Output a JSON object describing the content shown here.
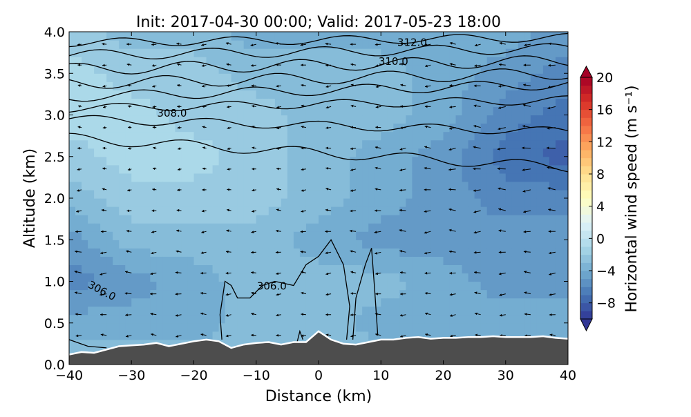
{
  "chart_data": {
    "type": "heatmap",
    "title": "Init: 2017-04-30 00:00; Valid: 2017-05-23 18:00",
    "xlabel": "Distance (km)",
    "ylabel": "Altitude (km)",
    "xlim": [
      -40,
      40
    ],
    "ylim": [
      0,
      4
    ],
    "x_ticks": [
      -40,
      -30,
      -20,
      -10,
      0,
      10,
      20,
      30,
      40
    ],
    "x_tick_labels": [
      "−40",
      "−30",
      "−20",
      "−10",
      "0",
      "10",
      "20",
      "30",
      "40"
    ],
    "y_ticks": [
      0,
      0.5,
      1,
      1.5,
      2,
      2.5,
      3,
      3.5,
      4
    ],
    "y_tick_labels": [
      "0.0",
      "0.5",
      "1.0",
      "1.5",
      "2.0",
      "2.5",
      "3.0",
      "3.5",
      "4.0"
    ],
    "grid": false,
    "colorbar": {
      "label": "Horizontal wind speed (m s⁻¹)",
      "min": -10,
      "max": 20,
      "step": 1,
      "extend": "both",
      "ticks": [
        20,
        16,
        12,
        8,
        4,
        0,
        -4,
        -8
      ],
      "tick_labels": [
        "20",
        "16",
        "12",
        "8",
        "4",
        "0",
        "−4",
        "−8"
      ]
    },
    "wind_field": [
      {
        "x": -40,
        "values": [
          -3,
          -4,
          -6,
          -5,
          -3,
          -2,
          -1,
          -1,
          -2
        ]
      },
      {
        "x": -30,
        "values": [
          -3,
          -4,
          -5,
          -3,
          -2,
          -1,
          -1,
          -2,
          -3
        ]
      },
      {
        "x": -20,
        "values": [
          -3,
          -4,
          -4,
          -3,
          -2,
          -1,
          -2,
          -2,
          -3
        ]
      },
      {
        "x": -10,
        "values": [
          -3,
          -3,
          -3,
          -3,
          -2,
          -2,
          -2,
          -3,
          -4
        ]
      },
      {
        "x": 0,
        "values": [
          -2,
          -3,
          -3,
          -4,
          -3,
          -3,
          -3,
          -3,
          -4
        ]
      },
      {
        "x": 10,
        "values": [
          -3,
          -4,
          -3,
          -5,
          -4,
          -4,
          -3,
          -3,
          -4
        ]
      },
      {
        "x": 20,
        "values": [
          -3,
          -4,
          -4,
          -5,
          -5,
          -5,
          -4,
          -4,
          -4
        ]
      },
      {
        "x": 30,
        "values": [
          -3,
          -4,
          -5,
          -5,
          -6,
          -7,
          -6,
          -5,
          -4
        ]
      },
      {
        "x": 40,
        "values": [
          -3,
          -4,
          -5,
          -5,
          -6,
          -8,
          -7,
          -6,
          -5
        ]
      }
    ],
    "wind_field_altitudes": [
      0,
      0.5,
      1,
      1.5,
      2,
      2.5,
      3,
      3.5,
      4
    ],
    "contour_labels": [
      {
        "text": "312.0",
        "x": 15,
        "y": 3.83
      },
      {
        "text": "310.0",
        "x": 12,
        "y": 3.6
      },
      {
        "text": "308.0",
        "x": -23.5,
        "y": 2.98
      },
      {
        "text": "306.0",
        "x": -7.5,
        "y": 0.9
      },
      {
        "text": "306.0",
        "x": -35,
        "y": 0.85
      }
    ],
    "terrain": {
      "color": "#4d4d4d",
      "x": [
        -40,
        -38,
        -36,
        -34,
        -32,
        -30,
        -28,
        -26,
        -24,
        -22,
        -20,
        -18,
        -16,
        -14,
        -12,
        -10,
        -8,
        -6,
        -4,
        -2,
        0,
        1,
        2,
        4,
        6,
        8,
        10,
        12,
        14,
        16,
        18,
        20,
        22,
        24,
        26,
        28,
        30,
        32,
        34,
        36,
        38,
        40
      ],
      "y": [
        0.12,
        0.15,
        0.14,
        0.18,
        0.22,
        0.23,
        0.24,
        0.26,
        0.22,
        0.25,
        0.28,
        0.3,
        0.28,
        0.2,
        0.24,
        0.26,
        0.27,
        0.24,
        0.27,
        0.27,
        0.4,
        0.35,
        0.3,
        0.25,
        0.24,
        0.27,
        0.3,
        0.3,
        0.32,
        0.33,
        0.31,
        0.32,
        0.32,
        0.33,
        0.33,
        0.34,
        0.33,
        0.33,
        0.33,
        0.34,
        0.32,
        0.31
      ]
    }
  }
}
